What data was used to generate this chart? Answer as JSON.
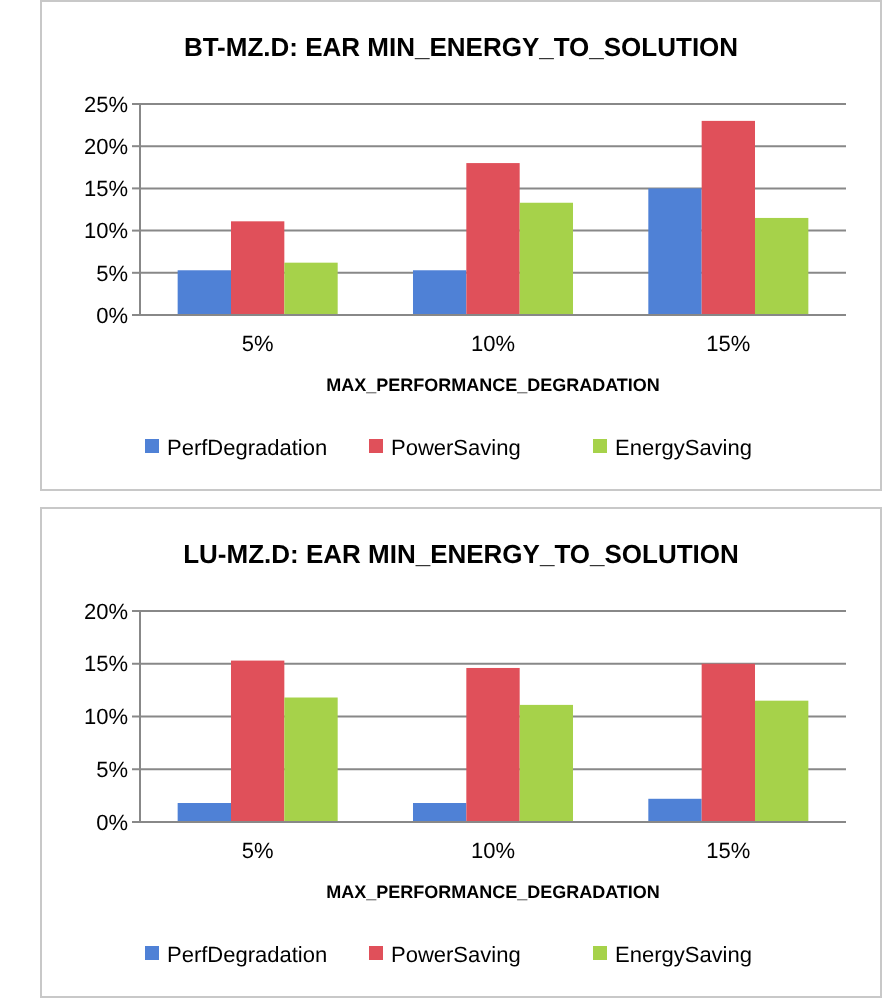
{
  "chart_data": [
    {
      "type": "bar",
      "title": "BT-MZ.D: EAR MIN_ENERGY_TO_SOLUTION",
      "xlabel": "MAX_PERFORMANCE_DEGRADATION",
      "categories": [
        "5%",
        "10%",
        "15%"
      ],
      "series": [
        {
          "name": "PerfDegradation",
          "color": "#4f81d6",
          "values": [
            5.3,
            5.3,
            15
          ]
        },
        {
          "name": "PowerSaving",
          "color": "#e0505a",
          "values": [
            11.1,
            18,
            23
          ]
        },
        {
          "name": "EnergySaving",
          "color": "#a6d24a",
          "values": [
            6.2,
            13.3,
            11.5
          ]
        }
      ],
      "ylim": [
        0,
        25
      ],
      "yticks": [
        {
          "value": 0,
          "label": "0%"
        },
        {
          "value": 5,
          "label": "5%"
        },
        {
          "value": 10,
          "label": "10%"
        },
        {
          "value": 15,
          "label": "15%"
        },
        {
          "value": 20,
          "label": "20%"
        },
        {
          "value": 25,
          "label": "25%"
        }
      ],
      "grid": "y",
      "legend": "bottom"
    },
    {
      "type": "bar",
      "title": "LU-MZ.D: EAR MIN_ENERGY_TO_SOLUTION",
      "xlabel": "MAX_PERFORMANCE_DEGRADATION",
      "categories": [
        "5%",
        "10%",
        "15%"
      ],
      "series": [
        {
          "name": "PerfDegradation",
          "color": "#4f81d6",
          "values": [
            1.8,
            1.8,
            2.2
          ]
        },
        {
          "name": "PowerSaving",
          "color": "#e0505a",
          "values": [
            15.3,
            14.6,
            15
          ]
        },
        {
          "name": "EnergySaving",
          "color": "#a6d24a",
          "values": [
            11.8,
            11.1,
            11.5
          ]
        }
      ],
      "ylim": [
        0,
        20
      ],
      "yticks": [
        {
          "value": 0,
          "label": "0%"
        },
        {
          "value": 5,
          "label": "5%"
        },
        {
          "value": 10,
          "label": "10%"
        },
        {
          "value": 15,
          "label": "15%"
        },
        {
          "value": 20,
          "label": "20%"
        }
      ],
      "grid": "y",
      "legend": "bottom"
    }
  ]
}
